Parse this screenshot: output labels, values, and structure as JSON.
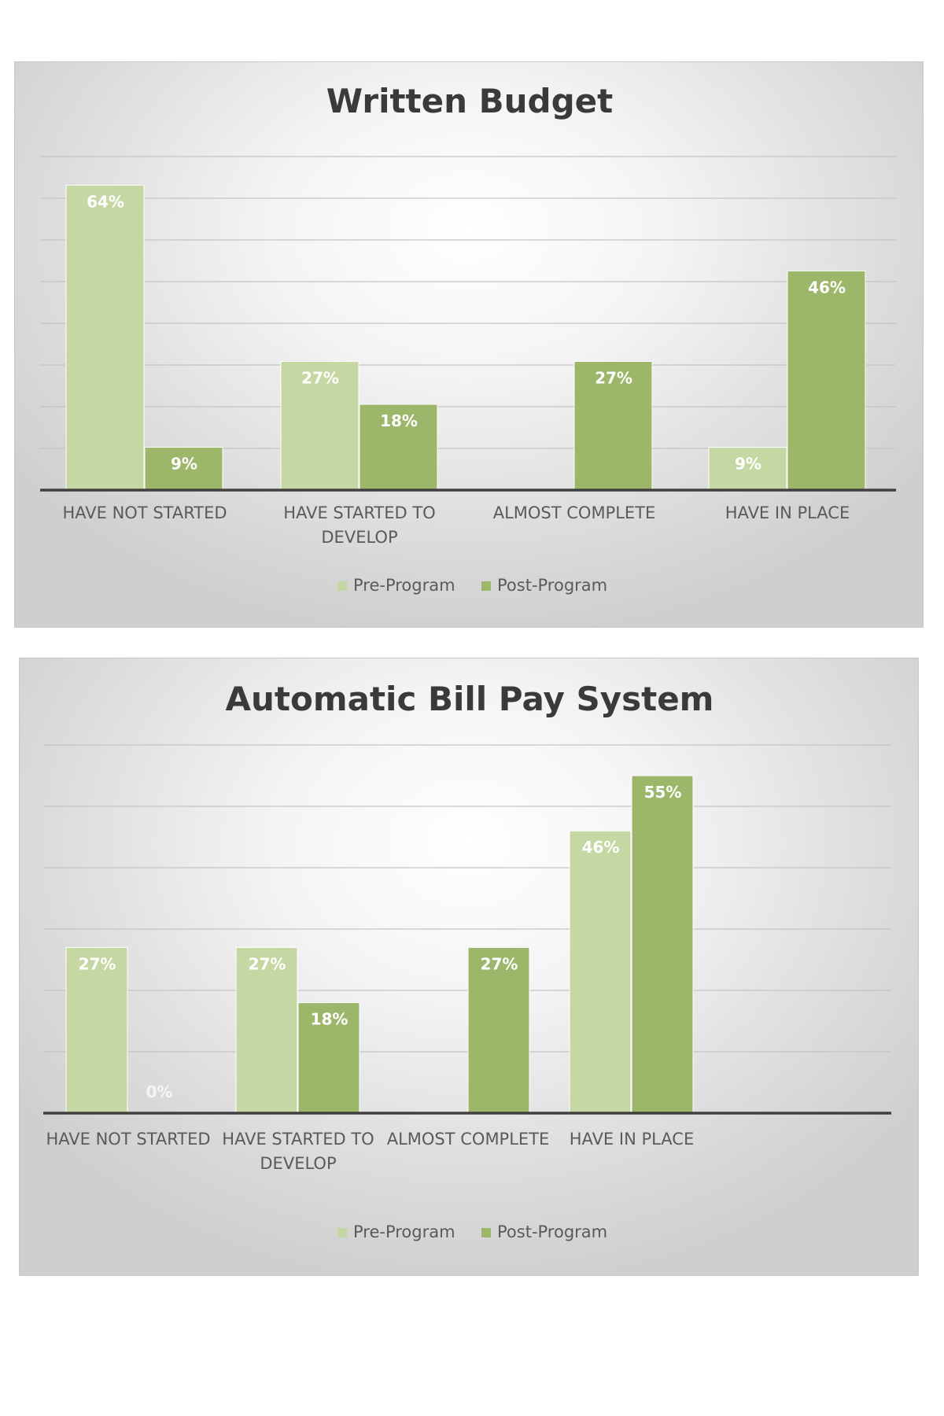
{
  "chart_data": [
    {
      "type": "bar",
      "title": "Written Budget",
      "categories": [
        [
          "HAVE NOT STARTED"
        ],
        [
          "HAVE STARTED TO",
          "DEVELOP"
        ],
        [
          "ALMOST COMPLETE"
        ],
        [
          "HAVE IN PLACE"
        ]
      ],
      "series": [
        {
          "name": "Pre-Program",
          "color": "#c5d8a4",
          "values": [
            64,
            27,
            null,
            9
          ],
          "labels": [
            "64%",
            "27%",
            "",
            "9%"
          ]
        },
        {
          "name": "Post-Program",
          "color": "#9cb66a",
          "values": [
            9,
            18,
            27,
            46
          ],
          "labels": [
            "9%",
            "18%",
            "27%",
            "46%"
          ]
        }
      ],
      "ylim": [
        0,
        70
      ],
      "grid": true,
      "legend": "bottom"
    },
    {
      "type": "bar",
      "title": "Automatic Bill Pay System",
      "categories": [
        [
          "HAVE NOT STARTED"
        ],
        [
          "HAVE STARTED TO",
          "DEVELOP"
        ],
        [
          "ALMOST COMPLETE"
        ],
        [
          "HAVE IN PLACE"
        ]
      ],
      "series": [
        {
          "name": "Pre-Program",
          "color": "#c5d8a4",
          "values": [
            27,
            27,
            null,
            46
          ],
          "labels": [
            "27%",
            "27%",
            "",
            "46%"
          ]
        },
        {
          "name": "Post-Program",
          "color": "#9cb66a",
          "values": [
            0,
            18,
            27,
            55
          ],
          "labels": [
            "0%",
            "18%",
            "27%",
            "55%"
          ]
        }
      ],
      "ylim": [
        0,
        60
      ],
      "grid": true,
      "legend": "bottom"
    }
  ]
}
